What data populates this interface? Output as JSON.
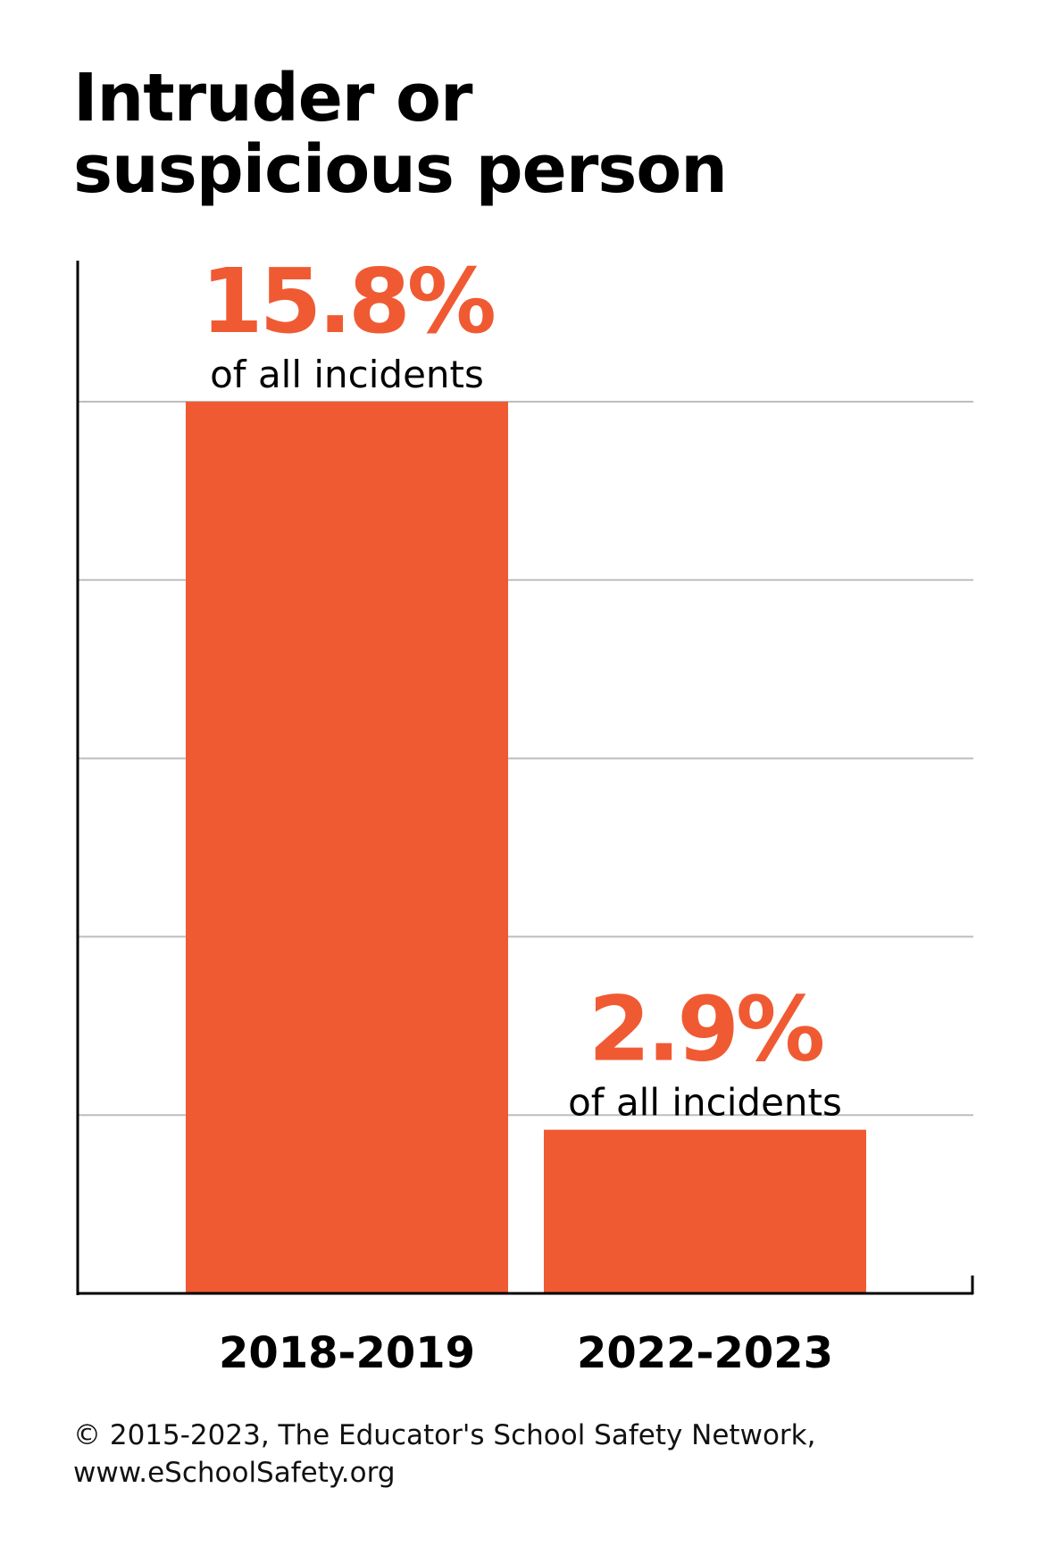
{
  "title_lines": [
    "Intruder or",
    "suspicious person"
  ],
  "footer_lines": [
    "© 2015-2023, The Educator's School Safety Network,",
    "www.eSchoolSafety.org"
  ],
  "colors": {
    "bar": "#F05A33",
    "value_text": "#F05A33",
    "axis": "#000000",
    "grid": "#BDBDBD"
  },
  "chart_data": {
    "type": "bar",
    "categories": [
      "2018-2019",
      "2022-2023"
    ],
    "values": [
      15.8,
      2.9
    ],
    "value_labels": [
      "15.8%",
      "2.9%"
    ],
    "value_sublabel": "of all incidents",
    "unit": "%",
    "ylim": [
      0,
      15.8
    ],
    "grid": true,
    "gridline_count": 5,
    "legend": "none"
  }
}
